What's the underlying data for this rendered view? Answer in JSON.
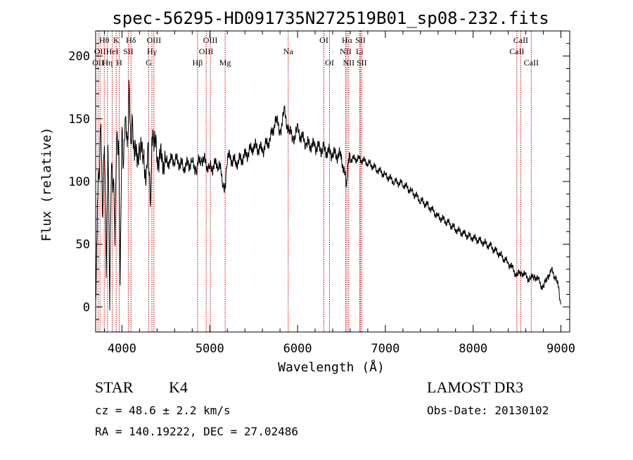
{
  "chart_data": {
    "type": "line",
    "title": "spec-56295-HD091735N272519B01_sp08-232.fits",
    "xlabel": "Wavelength (Å)",
    "ylabel": "Flux (relative)",
    "xlim": [
      3700,
      9100
    ],
    "ylim": [
      -20,
      220
    ],
    "xticks": [
      4000,
      5000,
      6000,
      7000,
      8000,
      9000
    ],
    "yticks": [
      0,
      50,
      100,
      150,
      200
    ],
    "x_minor_step": 200,
    "y_minor_step": 10,
    "line_color": "#000000",
    "marker_color": "#cc0000",
    "series": [
      {
        "name": "spectrum",
        "x": [
          3700,
          3720,
          3740,
          3760,
          3780,
          3800,
          3820,
          3840,
          3860,
          3880,
          3900,
          3920,
          3940,
          3960,
          3980,
          4000,
          4020,
          4040,
          4060,
          4080,
          4100,
          4120,
          4150,
          4200,
          4250,
          4280,
          4300,
          4320,
          4340,
          4360,
          4400,
          4500,
          4600,
          4700,
          4800,
          4850,
          4900,
          5000,
          5100,
          5150,
          5180,
          5200,
          5300,
          5400,
          5500,
          5600,
          5700,
          5750,
          5800,
          5850,
          5900,
          5950,
          6000,
          6100,
          6200,
          6300,
          6400,
          6500,
          6560,
          6580,
          6600,
          6700,
          6800,
          6900,
          7000,
          7100,
          7200,
          7300,
          7400,
          7500,
          7600,
          7700,
          7800,
          7900,
          8000,
          8100,
          8200,
          8300,
          8400,
          8450,
          8500,
          8550,
          8600,
          8650,
          8700,
          8750,
          8800,
          8850,
          8900,
          8950,
          8980,
          9000
        ],
        "y": [
          5,
          80,
          110,
          150,
          70,
          140,
          30,
          130,
          10,
          120,
          100,
          60,
          140,
          130,
          25,
          145,
          110,
          155,
          125,
          170,
          130,
          145,
          120,
          125,
          120,
          100,
          130,
          80,
          125,
          135,
          120,
          115,
          118,
          112,
          115,
          110,
          120,
          110,
          115,
          100,
          95,
          120,
          115,
          120,
          128,
          125,
          135,
          150,
          140,
          155,
          140,
          135,
          140,
          130,
          128,
          125,
          122,
          120,
          95,
          118,
          118,
          118,
          115,
          110,
          105,
          100,
          98,
          92,
          85,
          80,
          72,
          68,
          62,
          58,
          55,
          52,
          48,
          42,
          35,
          30,
          25,
          28,
          24,
          22,
          25,
          20,
          15,
          25,
          28,
          22,
          12,
          2
        ]
      }
    ],
    "line_markers": [
      {
        "wavelength": 3727,
        "label": "OII",
        "row": 2
      },
      {
        "wavelength": 3750,
        "label": "OII",
        "row": 1
      },
      {
        "wavelength": 3798,
        "label": "Hθ",
        "row": 0
      },
      {
        "wavelength": 3835,
        "label": "Hη",
        "row": 2
      },
      {
        "wavelength": 3889,
        "label": "HeI",
        "row": 1
      },
      {
        "wavelength": 3934,
        "label": "K",
        "row": 0
      },
      {
        "wavelength": 3968,
        "label": "H",
        "row": 2
      },
      {
        "wavelength": 4072,
        "label": "SII",
        "row": 1
      },
      {
        "wavelength": 4102,
        "label": "Hδ",
        "row": 0
      },
      {
        "wavelength": 4304,
        "label": "G",
        "row": 2
      },
      {
        "wavelength": 4341,
        "label": "Hγ",
        "row": 1
      },
      {
        "wavelength": 4363,
        "label": "OIII",
        "row": 0
      },
      {
        "wavelength": 4861,
        "label": "Hβ",
        "row": 2
      },
      {
        "wavelength": 4959,
        "label": "OIII",
        "row": 1
      },
      {
        "wavelength": 5007,
        "label": "OIII",
        "row": 0
      },
      {
        "wavelength": 5175,
        "label": "Mg",
        "row": 2
      },
      {
        "wavelength": 5894,
        "label": "Na",
        "row": 1
      },
      {
        "wavelength": 6300,
        "label": "OI",
        "row": 0
      },
      {
        "wavelength": 6364,
        "label": "OI",
        "row": 2
      },
      {
        "wavelength": 6548,
        "label": "NII",
        "row": 1
      },
      {
        "wavelength": 6563,
        "label": "Hα",
        "row": 0
      },
      {
        "wavelength": 6583,
        "label": "NII",
        "row": 2
      },
      {
        "wavelength": 6707,
        "label": "Li",
        "row": 1
      },
      {
        "wavelength": 6716,
        "label": "SII",
        "row": 0
      },
      {
        "wavelength": 6731,
        "label": "SII",
        "row": 2
      },
      {
        "wavelength": 8498,
        "label": "CaII",
        "row": 1
      },
      {
        "wavelength": 8542,
        "label": "CaII",
        "row": 0
      },
      {
        "wavelength": 8662,
        "label": "CaII",
        "row": 2
      }
    ]
  },
  "info": {
    "object_class": "STAR",
    "subclass": "K4",
    "survey": "LAMOST DR3",
    "cz": "cz = 48.6 ± 2.2 km/s",
    "obs_date": "Obs-Date: 20130102",
    "coords": "RA = 140.19222, DEC =  27.02486"
  }
}
